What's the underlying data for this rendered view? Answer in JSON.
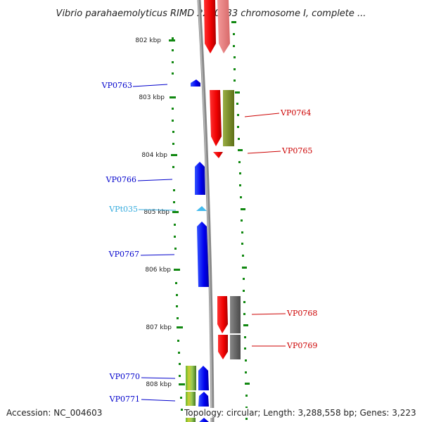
{
  "title": "Vibrio parahaemolyticus RIMD 2210633 chromosome I, complete ...",
  "ticks": [
    "802 kbp",
    "803 kbp",
    "804 kbp",
    "805 kbp",
    "806 kbp",
    "807 kbp",
    "808 kbp"
  ],
  "genes": [
    {
      "label": "VP0763",
      "color": "#0000cc"
    },
    {
      "label": "VP0764",
      "color": "#cc0000"
    },
    {
      "label": "VP0765",
      "color": "#cc0000"
    },
    {
      "label": "VP0766",
      "color": "#0000cc"
    },
    {
      "label": "VPt035",
      "color": "#33aadd"
    },
    {
      "label": "VP0767",
      "color": "#0000cc"
    },
    {
      "label": "VP0768",
      "color": "#cc0000"
    },
    {
      "label": "VP0769",
      "color": "#cc0000"
    },
    {
      "label": "VP0770",
      "color": "#0000cc"
    },
    {
      "label": "VP0771",
      "color": "#0000cc"
    }
  ],
  "footer": {
    "accession": "Accession: NC_004603",
    "summary": "Topology: circular; Length: 3,288,558 bp; Genes: 3,223"
  },
  "colors": {
    "forward_cds": "#0000ff",
    "reverse_cds": "#ff0000",
    "backbone": "#888888",
    "ticks": "#118811",
    "cog_olive": "#7a8f2a",
    "cog_gray": "#666666",
    "cog_pink": "#ee8888",
    "trna": "#44bbee"
  }
}
